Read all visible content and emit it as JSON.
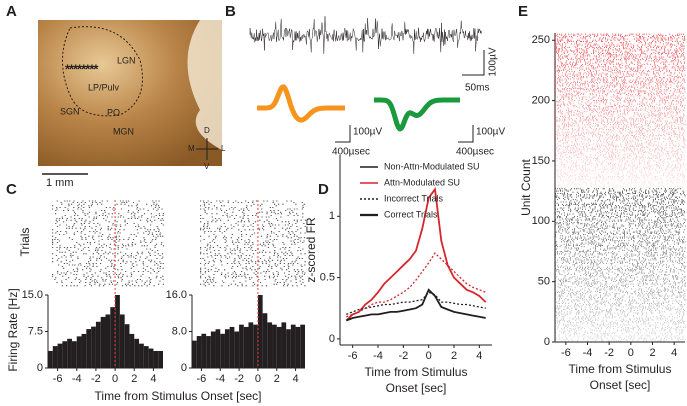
{
  "panel_labels": [
    "A",
    "B",
    "C",
    "D",
    "E"
  ],
  "panel_a": {
    "regions": [
      "LGN",
      "LP/Pulv",
      "SGN",
      "PO",
      "MGN"
    ],
    "markers": "********",
    "compass": [
      "D",
      "V",
      "M",
      "L"
    ],
    "scale_bar": "1 mm"
  },
  "panel_b": {
    "trace_scale_y": "100µV",
    "trace_scale_x": "50ms",
    "waveform_scale_y": [
      "100µV",
      "100µV"
    ],
    "waveform_scale_x": [
      "400µsec",
      "400µsec"
    ],
    "waveform_colors": [
      "#f7941d",
      "#1a9a3c"
    ]
  },
  "panel_c": {
    "raster_label": "Trials",
    "y_label": "Firing Rate [Hz]",
    "x_label": "Time from Stimulus Onset [sec]"
  },
  "chart_data": [
    {
      "type": "histogram",
      "color": "#231f20",
      "bins": [
        -7,
        -6.5,
        -6,
        -5.5,
        -5,
        -4.5,
        -4,
        -3.5,
        -3,
        -2.5,
        -2,
        -1.5,
        -1,
        -0.5,
        0,
        0.5,
        1,
        1.5,
        2,
        2.5,
        3,
        3.5,
        4,
        4.5,
        5
      ],
      "values": [
        3.5,
        4.5,
        5,
        5.5,
        6,
        5.5,
        6.5,
        7,
        8,
        8.5,
        9.5,
        10.5,
        11,
        12.5,
        15,
        11,
        9,
        7,
        6,
        5,
        4.5,
        4,
        3.5,
        3.5
      ],
      "xlim": [
        -7,
        5
      ],
      "xticks": [
        -6,
        -4,
        -2,
        0,
        2,
        4
      ],
      "ylim": [
        0,
        15
      ],
      "yticks": [
        0,
        7.5,
        {
          "value": 15,
          "label": "15.0"
        }
      ]
    },
    {
      "type": "histogram",
      "color": "#231f20",
      "bins": [
        -7,
        -6.5,
        -6,
        -5.5,
        -5,
        -4.5,
        -4,
        -3.5,
        -3,
        -2.5,
        -2,
        -1.5,
        -1,
        -0.5,
        0,
        0.5,
        1,
        1.5,
        2,
        2.5,
        3,
        3.5,
        4,
        4.5,
        5
      ],
      "values": [
        6,
        7,
        7.5,
        7,
        8,
        8.5,
        7.5,
        8.5,
        9,
        8,
        9.5,
        9,
        10,
        9.5,
        16,
        12,
        10,
        9.5,
        9,
        10,
        8.5,
        9.5,
        9,
        9.5
      ],
      "xlim": [
        -7,
        5
      ],
      "xticks": [
        -6,
        -4,
        -2,
        0,
        2,
        4
      ],
      "ylim": [
        0,
        16
      ],
      "yticks": [
        0,
        {
          "value": 8,
          "label": "8.0"
        },
        {
          "value": 16,
          "label": "16.0"
        }
      ]
    },
    {
      "type": "line",
      "y_label": "z-scored FR",
      "x_label": [
        "Time from Stimulus",
        "Onset [sec]"
      ],
      "x": [
        -6.5,
        -6,
        -5.5,
        -5,
        -4.5,
        -4,
        -3.5,
        -3,
        -2.5,
        -2,
        -1.5,
        -1,
        -0.5,
        0,
        0.5,
        1,
        1.5,
        2,
        2.5,
        3,
        3.5,
        4,
        4.5
      ],
      "series": [
        {
          "color": "#d7262b",
          "dash": false,
          "values": [
            0.15,
            0.2,
            0.22,
            0.28,
            0.32,
            0.38,
            0.45,
            0.5,
            0.55,
            0.6,
            0.65,
            0.72,
            0.9,
            1.15,
            1.22,
            0.8,
            0.6,
            0.5,
            0.45,
            0.4,
            0.38,
            0.35,
            0.3
          ]
        },
        {
          "color": "#d7262b",
          "dash": true,
          "values": [
            0.18,
            0.2,
            0.22,
            0.25,
            0.28,
            0.3,
            0.3,
            0.32,
            0.35,
            0.38,
            0.42,
            0.48,
            0.55,
            0.62,
            0.7,
            0.65,
            0.6,
            0.55,
            0.5,
            0.45,
            0.42,
            0.4,
            0.38
          ]
        },
        {
          "color": "#231f20",
          "dash": true,
          "values": [
            0.2,
            0.22,
            0.24,
            0.25,
            0.26,
            0.27,
            0.28,
            0.28,
            0.29,
            0.3,
            0.3,
            0.31,
            0.32,
            0.38,
            0.36,
            0.3,
            0.3,
            0.29,
            0.28,
            0.28,
            0.27,
            0.26,
            0.25
          ]
        },
        {
          "color": "#231f20",
          "dash": false,
          "values": [
            0.15,
            0.17,
            0.18,
            0.19,
            0.2,
            0.2,
            0.21,
            0.22,
            0.22,
            0.23,
            0.24,
            0.25,
            0.28,
            0.4,
            0.35,
            0.26,
            0.24,
            0.22,
            0.21,
            0.2,
            0.19,
            0.18,
            0.17
          ]
        }
      ],
      "legend": [
        {
          "label": "Non-Attn-Modulated SU",
          "color": "#231f20",
          "dash": false
        },
        {
          "label": "Attn-Modulated SU",
          "color": "#d7262b",
          "dash": false
        },
        {
          "label": "Incorrect Trials",
          "color": "#231f20",
          "dash": true
        },
        {
          "label": "Correct Trials",
          "color": "#231f20",
          "dash": false
        }
      ],
      "xlim": [
        -7,
        5
      ],
      "xticks": [
        -6,
        -4,
        -2,
        0,
        2,
        4
      ],
      "ylim": [
        -0.05,
        1.5
      ],
      "yticks": [
        0,
        0.5,
        1
      ]
    },
    {
      "type": "raster",
      "y_label": "Unit Count",
      "x_label": [
        "Time from Stimulus",
        "Onset [sec]"
      ],
      "xlim": [
        -7,
        5
      ],
      "xticks": [
        -6,
        -4,
        -2,
        0,
        2,
        4
      ],
      "ylim": [
        0,
        256
      ],
      "yticks": [
        0,
        50,
        100,
        150,
        200,
        250
      ]
    }
  ]
}
